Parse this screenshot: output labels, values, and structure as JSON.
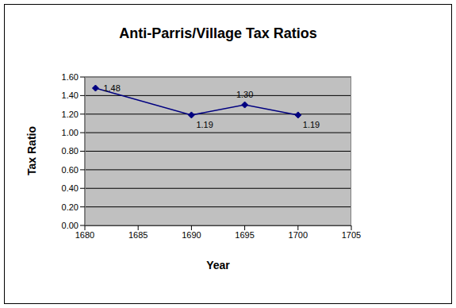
{
  "chart_data": {
    "type": "line",
    "title": "Anti-Parris/Village Tax Ratios",
    "x_label": "Year",
    "y_label": "Tax Ratio",
    "x": [
      1681,
      1690,
      1695,
      1700
    ],
    "values": [
      1.48,
      1.19,
      1.3,
      1.19
    ],
    "value_labels": [
      "1.48",
      "1.19",
      "1.30",
      "1.19"
    ],
    "color": "#000080",
    "marker": "diamond",
    "data_labels": true,
    "grid": true,
    "xlim": [
      1680,
      1705
    ],
    "xticks": [
      1680,
      1685,
      1690,
      1695,
      1700,
      1705
    ],
    "ylim": [
      0,
      1.6
    ],
    "yticks": [
      {
        "value": 0,
        "label": "0.00"
      },
      {
        "value": 0.2,
        "label": "0.20"
      },
      {
        "value": 0.4,
        "label": "0.40"
      },
      {
        "value": 0.6,
        "label": "0.60"
      },
      {
        "value": 0.8,
        "label": "0.80"
      },
      {
        "value": 1.0,
        "label": "1.00"
      },
      {
        "value": 1.2,
        "label": "1.20"
      },
      {
        "value": 1.4,
        "label": "1.40"
      },
      {
        "value": 1.6,
        "label": "1.60"
      }
    ]
  }
}
